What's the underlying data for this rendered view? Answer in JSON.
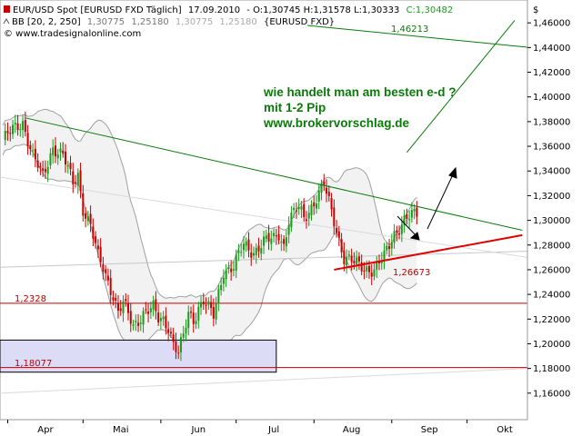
{
  "header": {
    "line1_instrument": "EUR/USD Spot [EURUSD FXD  Täglich]",
    "line1_date": "17.09.2010",
    "line1_ohl": "- O:1,30745 H:1,31578 L:1,30333",
    "line1_close": "C:1,30482",
    "line2_prefix": "BB [20, 2, 250]",
    "line2_val1": "1,30775",
    "line2_val2": "1,25180",
    "line2_val3": "1,30775",
    "line2_val4": "1,25180",
    "line2_suffix": "{EURUSD FXD}",
    "line3": "© www.tradesignalonline.com",
    "currency": "$"
  },
  "annotations": {
    "question": "wie handelt man am besten e-d ?",
    "pips": "mit 1-2 Pip",
    "site": "www.brokervorschlag.de",
    "level_upper_target": "1,46213",
    "level_support_low": "1,26673",
    "level_1": "1,2328",
    "level_2": "1,18077"
  },
  "chart_data": {
    "type": "candlestick",
    "title": "EUR/USD Spot [EURUSD FXD  Täglich]",
    "ylim": [
      1.14,
      1.48
    ],
    "y_ticks": [
      "1,16000",
      "1,18000",
      "1,20000",
      "1,22000",
      "1,24000",
      "1,26000",
      "1,28000",
      "1,30000",
      "1,32000",
      "1,34000",
      "1,36000",
      "1,38000",
      "1,40000",
      "1,42000",
      "1,44000",
      "1,46000"
    ],
    "x_labels": [
      "Apr",
      "Mai",
      "Jun",
      "Jul",
      "Aug",
      "Sep",
      "Okt"
    ],
    "x_label_days": [
      17,
      47,
      78,
      108,
      139,
      170,
      200
    ],
    "close_series_days": [
      0,
      4,
      8,
      12,
      16,
      20,
      24,
      28,
      30,
      32,
      35,
      38,
      40,
      44,
      46,
      48,
      52,
      56,
      60,
      62,
      64,
      66,
      68,
      70,
      72,
      74,
      76,
      78,
      80,
      82,
      84,
      88,
      92,
      96,
      100,
      104,
      108,
      110,
      112,
      114,
      116,
      118,
      120,
      124,
      128,
      132,
      136,
      140,
      144,
      148,
      152,
      156,
      160,
      165
    ],
    "close_series": [
      1.365,
      1.373,
      1.38,
      1.352,
      1.335,
      1.36,
      1.352,
      1.33,
      1.338,
      1.31,
      1.295,
      1.27,
      1.262,
      1.24,
      1.225,
      1.232,
      1.215,
      1.225,
      1.228,
      1.22,
      1.22,
      1.215,
      1.2,
      1.192,
      1.205,
      1.225,
      1.22,
      1.23,
      1.235,
      1.228,
      1.222,
      1.26,
      1.262,
      1.28,
      1.275,
      1.282,
      1.285,
      1.29,
      1.28,
      1.3,
      1.305,
      1.31,
      1.302,
      1.315,
      1.328,
      1.3,
      1.27,
      1.265,
      1.262,
      1.26,
      1.27,
      1.29,
      1.3,
      1.305
    ],
    "lines": [
      {
        "label": "1,46213",
        "color": "#0a7a0a",
        "from": [
          9,
          1.383
        ],
        "to": [
          207,
          1.292
        ]
      },
      {
        "label": "",
        "color": "#0a7a0a",
        "from": [
          161,
          1.355
        ],
        "to": [
          204,
          1.462
        ]
      },
      {
        "label": "1,26673",
        "color": "#e00000",
        "from": [
          132,
          1.26
        ],
        "to": [
          207,
          1.288
        ]
      },
      {
        "label": "1,2328",
        "color": "#c00000",
        "horizontal": 1.2328
      },
      {
        "label": "1,18077",
        "color": "#c00000",
        "horizontal": 1.18077
      }
    ],
    "box": {
      "x": [
        0,
        109
      ],
      "y": [
        1.177,
        1.203
      ],
      "fill": "#dcdcf7"
    },
    "grid": false,
    "legend": "none"
  },
  "colors": {
    "up_candle": "#1a9c1a",
    "down_candle": "#c80000",
    "trend_green": "#0a7a0a",
    "support_red": "#e00000",
    "level_red": "#c00000",
    "band_gray": "#a0a0a0",
    "band_fill": "#f2f2f2",
    "box_fill": "#dcdcf7",
    "note_green": "#0a7a0a"
  }
}
